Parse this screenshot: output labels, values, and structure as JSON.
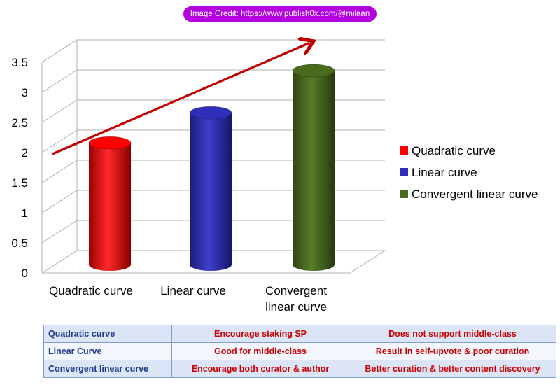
{
  "credit": "Image Credit: https://www.publish0x.com/@milaan",
  "chart_data": {
    "type": "bar",
    "categories": [
      [
        "Quadratic curve"
      ],
      [
        "Linear curve"
      ],
      [
        "Convergent",
        "linear curve"
      ]
    ],
    "series": [
      {
        "name": "Quadratic curve",
        "value": 2,
        "color": "#ff0000"
      },
      {
        "name": "Linear curve",
        "value": 2.5,
        "color": "#2e2eb8"
      },
      {
        "name": "Convergent linear curve",
        "value": 3.2,
        "color": "#4a6b1e"
      }
    ],
    "yticks": [
      "0",
      "0.5",
      "1",
      "1.5",
      "2",
      "2.5",
      "3",
      "3.5"
    ],
    "ylim": [
      0,
      3.5
    ],
    "grid": true,
    "legend_position": "right",
    "trend_arrow": {
      "from": 2,
      "to": 3.6,
      "color": "#c00000"
    }
  },
  "table": {
    "rows": [
      [
        "Quadratic curve",
        "Encourage staking SP",
        "Does not support middle-class"
      ],
      [
        "Linear Curve",
        "Good for middle-class",
        "Result in self-upvote & poor curation"
      ],
      [
        "Convergent linear curve",
        "Encourage both curator & author",
        "Better curation & better content discovery"
      ]
    ]
  }
}
